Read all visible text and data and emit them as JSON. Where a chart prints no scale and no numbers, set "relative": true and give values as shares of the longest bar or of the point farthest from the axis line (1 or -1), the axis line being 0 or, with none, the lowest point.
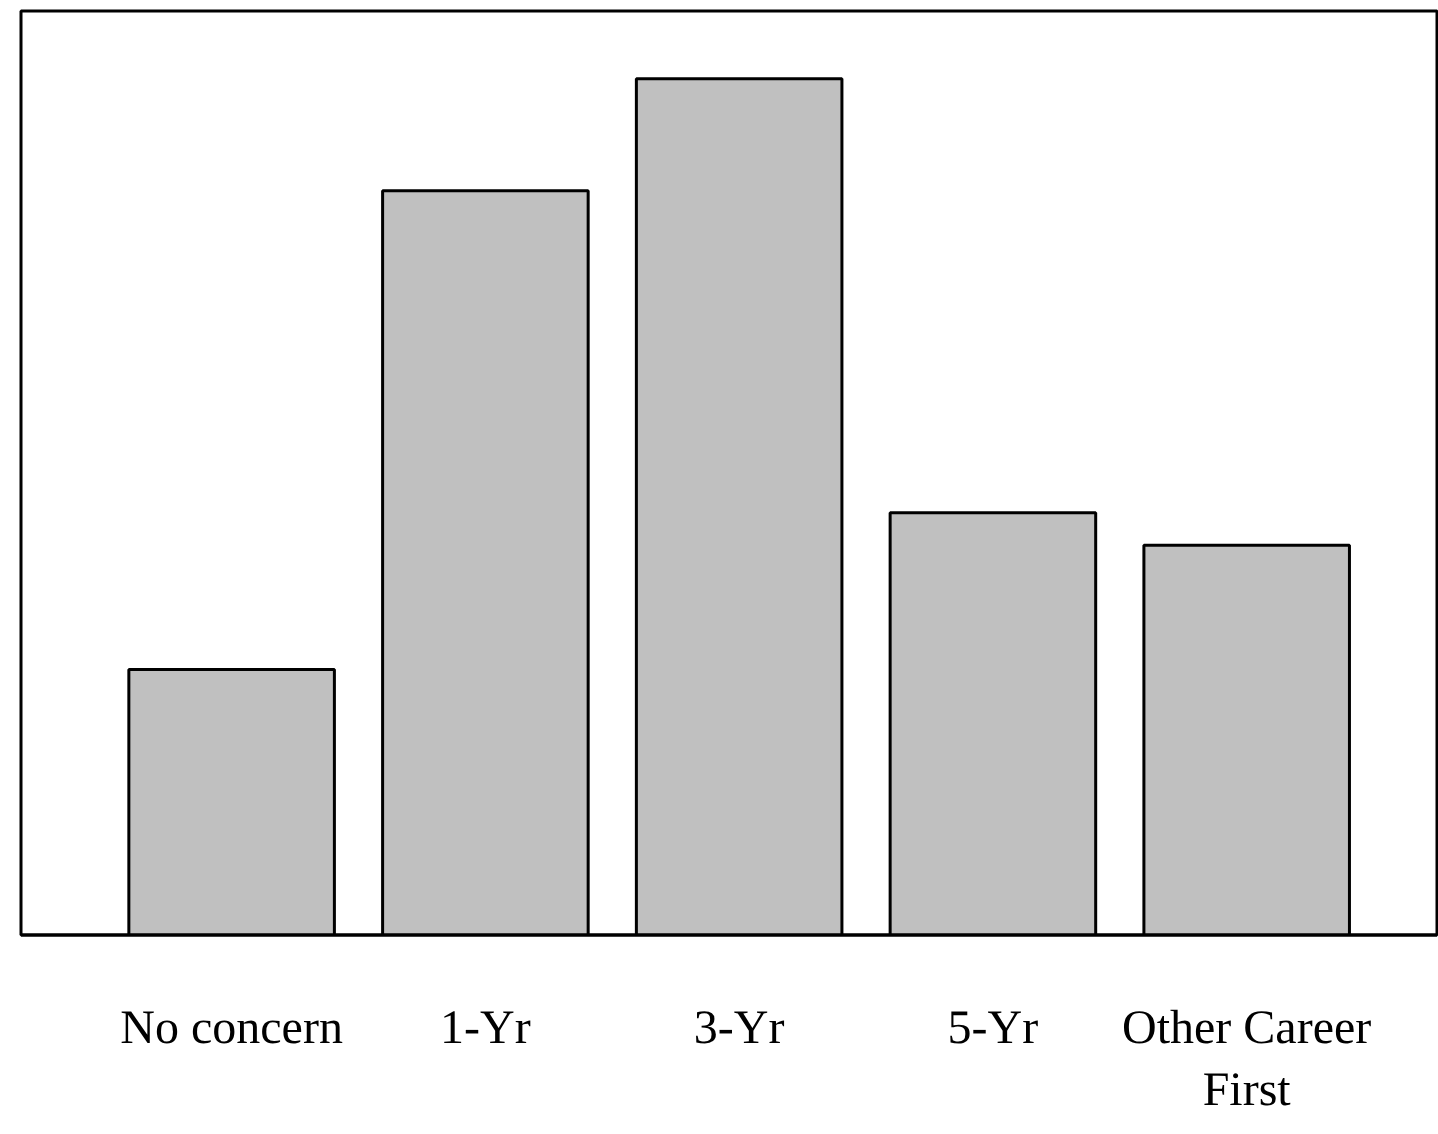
{
  "chart_data": {
    "type": "bar",
    "relative": true,
    "categories": [
      "No concern",
      "1-Yr",
      "3-Yr",
      "5-Yr",
      "Other Career\nFirst"
    ],
    "values": [
      0.31,
      0.869,
      1,
      0.493,
      0.455
    ],
    "color": "#c0c0c0"
  }
}
